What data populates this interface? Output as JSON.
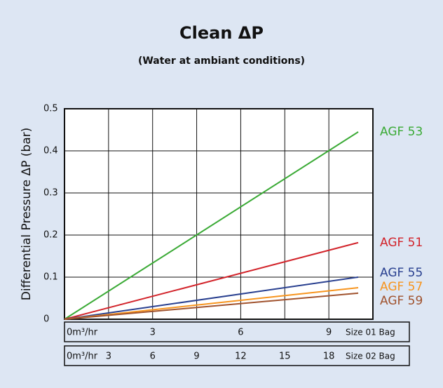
{
  "chart_data": {
    "type": "line",
    "title": "Clean ΔP",
    "subtitle": "(Water at ambiant conditions)",
    "ylabel": "Differential Pressure ΔP (bar)",
    "xlabel": "Size 01 Bag",
    "x2label": "Size 02 Bag",
    "x": [
      0,
      10
    ],
    "xlim": [
      0,
      10.5
    ],
    "xticks": [
      {
        "value": 0,
        "label": "0m³/hr"
      },
      3,
      6,
      9
    ],
    "x2lim": [
      0,
      21
    ],
    "x2ticks": [
      {
        "value": 0,
        "label": "0m³/hr"
      },
      3,
      6,
      9,
      12,
      15,
      18
    ],
    "ylim": [
      0,
      0.5
    ],
    "yticks": [
      0,
      0.1,
      0.2,
      0.3,
      0.4,
      0.5
    ],
    "grid": true,
    "series": [
      {
        "name": "AGF 53",
        "color": "#3aaa35",
        "values": [
          0,
          0.445
        ]
      },
      {
        "name": "AGF 51",
        "color": "#d2232a",
        "values": [
          0,
          0.182
        ]
      },
      {
        "name": "AGF 55",
        "color": "#283f8f",
        "values": [
          0,
          0.1
        ]
      },
      {
        "name": "AGF 57",
        "color": "#f7941d",
        "values": [
          0,
          0.075
        ]
      },
      {
        "name": "AGF 59",
        "color": "#a0522d",
        "values": [
          0,
          0.062
        ]
      }
    ]
  }
}
